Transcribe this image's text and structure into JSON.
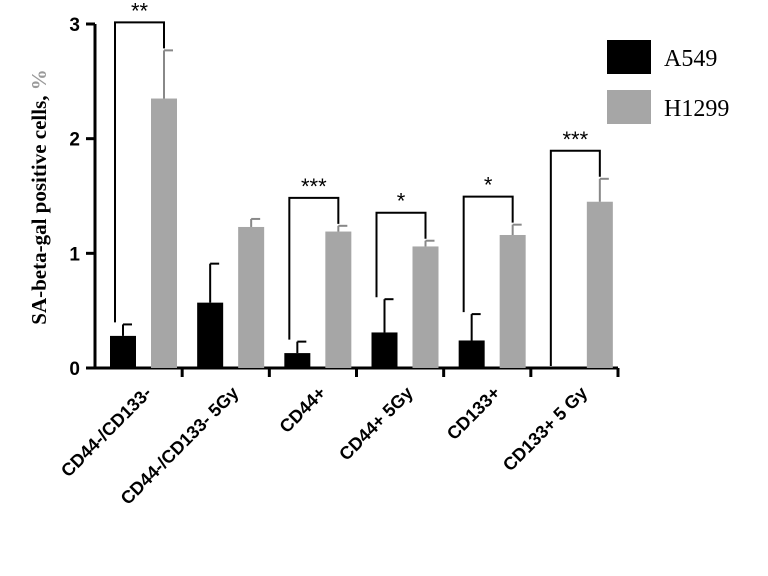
{
  "chart_data": {
    "type": "bar",
    "ylabel": "SA-beta-gal positive cells, ",
    "ylabel_unit": "%",
    "ylim": [
      0,
      3
    ],
    "yticks": [
      "0",
      "1",
      "2",
      "3"
    ],
    "categories": [
      "CD44-/CD133-",
      "CD44-/CD133- 5Gy",
      "CD44+",
      "CD44+ 5Gy",
      "CD133+",
      "CD133+ 5 Gy"
    ],
    "series": [
      {
        "name": "A549",
        "color": "#000000",
        "values": [
          0.28,
          0.57,
          0.13,
          0.31,
          0.24,
          0.0
        ],
        "errors": [
          0.1,
          0.34,
          0.1,
          0.29,
          0.23,
          0.0
        ]
      },
      {
        "name": "H1299",
        "color": "#a6a6a6",
        "values": [
          2.35,
          1.23,
          1.19,
          1.06,
          1.16,
          1.45
        ],
        "errors": [
          0.42,
          0.07,
          0.05,
          0.05,
          0.09,
          0.2
        ]
      }
    ],
    "significance": [
      "**",
      "",
      "***",
      "*",
      "*",
      "***"
    ],
    "legend_position": "top-right",
    "grid": false
  }
}
